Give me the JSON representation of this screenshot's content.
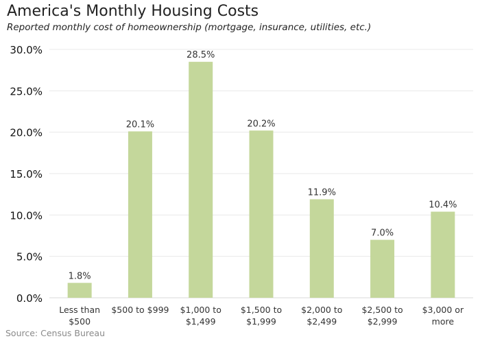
{
  "chart_data": {
    "type": "bar",
    "title": "America's Monthly Housing Costs",
    "subtitle": "Reported monthly cost of homeownership (mortgage,  insurance, utilities, etc.)",
    "source": "Source: Census Bureau",
    "categories": [
      [
        "Less than",
        "$500"
      ],
      [
        "$500 to $999"
      ],
      [
        "$1,000 to",
        "$1,499"
      ],
      [
        "$1,500 to",
        "$1,999"
      ],
      [
        "$2,000 to",
        "$2,499"
      ],
      [
        "$2,500 to",
        "$2,999"
      ],
      [
        "$3,000 or",
        "more"
      ]
    ],
    "values": [
      1.8,
      20.1,
      28.5,
      20.2,
      11.9,
      7.0,
      10.4
    ],
    "labels": [
      "1.8%",
      "20.1%",
      "28.5%",
      "20.2%",
      "11.9%",
      "7.0%",
      "10.4%"
    ],
    "yticks": [
      "0.0%",
      "5.0%",
      "10.0%",
      "15.0%",
      "20.0%",
      "25.0%",
      "30.0%"
    ],
    "ylim": [
      0,
      30
    ],
    "grid": true,
    "bar_color": "#c4d79b"
  }
}
